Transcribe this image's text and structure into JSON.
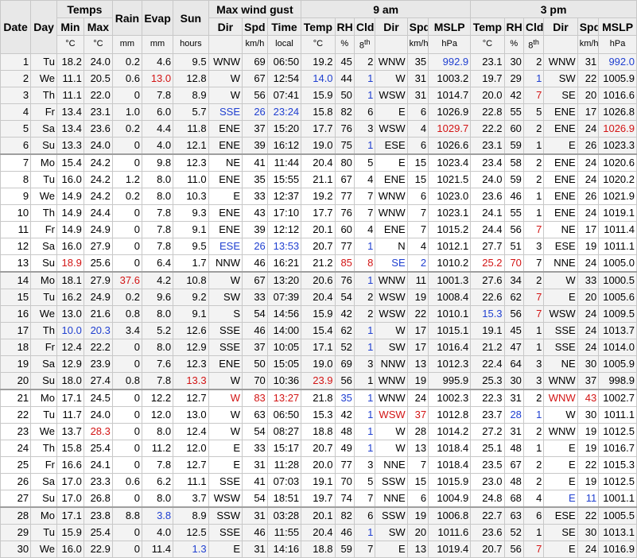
{
  "header": {
    "date": "Date",
    "day": "Day",
    "temps": "Temps",
    "rain": "Rain",
    "evap": "Evap",
    "sun": "Sun",
    "max_wind_gust": "Max wind gust",
    "am": "9 am",
    "pm": "3 pm",
    "min": "Min",
    "max": "Max",
    "dir": "Dir",
    "spd": "Spd",
    "time": "Time",
    "temp": "Temp",
    "rh": "RH",
    "cld": "Cld",
    "mslp": "MSLP",
    "unit_c": "°C",
    "unit_mm": "mm",
    "unit_hours": "hours",
    "unit_kmh": "km/h",
    "unit_local": "local",
    "unit_pct": "%",
    "unit_8": "8",
    "unit_th": "th",
    "unit_hpa": "hPa"
  },
  "colors": {
    "red": "#d21414",
    "blue": "#1f3fd0"
  },
  "rows": [
    [
      "1",
      "Tu",
      "18.2",
      "24.0",
      "0.2",
      "4.6",
      "9.5",
      "WNW",
      "69",
      "06:50",
      "19.2",
      "45",
      "2",
      "WNW",
      "35",
      "992.9",
      "23.1",
      "30",
      "2",
      "WNW",
      "31",
      "992.0"
    ],
    [
      "2",
      "We",
      "11.1",
      "20.5",
      "0.6",
      "13.0",
      "12.8",
      "W",
      "67",
      "12:54",
      "14.0",
      "44",
      "1",
      "W",
      "31",
      "1003.2",
      "19.7",
      "29",
      "1",
      "SW",
      "22",
      "1005.9"
    ],
    [
      "3",
      "Th",
      "11.1",
      "22.0",
      "0",
      "7.8",
      "8.9",
      "W",
      "56",
      "07:41",
      "15.9",
      "50",
      "1",
      "WSW",
      "31",
      "1014.7",
      "20.0",
      "42",
      "7",
      "SE",
      "20",
      "1016.6"
    ],
    [
      "4",
      "Fr",
      "13.4",
      "23.1",
      "1.0",
      "6.0",
      "5.7",
      "SSE",
      "26",
      "23:24",
      "15.8",
      "82",
      "6",
      "E",
      "6",
      "1026.9",
      "22.8",
      "55",
      "5",
      "ENE",
      "17",
      "1026.8"
    ],
    [
      "5",
      "Sa",
      "13.4",
      "23.6",
      "0.2",
      "4.4",
      "11.8",
      "ENE",
      "37",
      "15:20",
      "17.7",
      "76",
      "3",
      "WSW",
      "4",
      "1029.7",
      "22.2",
      "60",
      "2",
      "ENE",
      "24",
      "1026.9"
    ],
    [
      "6",
      "Su",
      "13.3",
      "24.0",
      "0",
      "4.0",
      "12.1",
      "ENE",
      "39",
      "16:12",
      "19.0",
      "75",
      "1",
      "ESE",
      "6",
      "1026.6",
      "23.1",
      "59",
      "1",
      "E",
      "26",
      "1023.3"
    ],
    [
      "7",
      "Mo",
      "15.4",
      "24.2",
      "0",
      "9.8",
      "12.3",
      "NE",
      "41",
      "11:44",
      "20.4",
      "80",
      "5",
      "E",
      "15",
      "1023.4",
      "23.4",
      "58",
      "2",
      "ENE",
      "24",
      "1020.6"
    ],
    [
      "8",
      "Tu",
      "16.0",
      "24.2",
      "1.2",
      "8.0",
      "11.0",
      "ENE",
      "35",
      "15:55",
      "21.1",
      "67",
      "4",
      "ENE",
      "15",
      "1021.5",
      "24.0",
      "59",
      "2",
      "ENE",
      "24",
      "1020.2"
    ],
    [
      "9",
      "We",
      "14.9",
      "24.2",
      "0.2",
      "8.0",
      "10.3",
      "E",
      "33",
      "12:37",
      "19.2",
      "77",
      "7",
      "WNW",
      "6",
      "1023.0",
      "23.6",
      "46",
      "1",
      "ENE",
      "26",
      "1021.9"
    ],
    [
      "10",
      "Th",
      "14.9",
      "24.4",
      "0",
      "7.8",
      "9.3",
      "ENE",
      "43",
      "17:10",
      "17.7",
      "76",
      "7",
      "WNW",
      "7",
      "1023.1",
      "24.1",
      "55",
      "1",
      "ENE",
      "24",
      "1019.1"
    ],
    [
      "11",
      "Fr",
      "14.9",
      "24.9",
      "0",
      "7.8",
      "9.1",
      "ENE",
      "39",
      "12:12",
      "20.1",
      "60",
      "4",
      "ENE",
      "7",
      "1015.2",
      "24.4",
      "56",
      "7",
      "NE",
      "17",
      "1011.4"
    ],
    [
      "12",
      "Sa",
      "16.0",
      "27.9",
      "0",
      "7.8",
      "9.5",
      "ESE",
      "26",
      "13:53",
      "20.7",
      "77",
      "1",
      "N",
      "4",
      "1012.1",
      "27.7",
      "51",
      "3",
      "ESE",
      "19",
      "1011.1"
    ],
    [
      "13",
      "Su",
      "18.9",
      "25.6",
      "0",
      "6.4",
      "1.7",
      "NNW",
      "46",
      "16:21",
      "21.2",
      "85",
      "8",
      "SE",
      "2",
      "1010.2",
      "25.2",
      "70",
      "7",
      "NNE",
      "24",
      "1005.0"
    ],
    [
      "14",
      "Mo",
      "18.1",
      "27.9",
      "37.6",
      "4.2",
      "10.8",
      "W",
      "67",
      "13:20",
      "20.6",
      "76",
      "1",
      "WNW",
      "11",
      "1001.3",
      "27.6",
      "34",
      "2",
      "W",
      "33",
      "1000.5"
    ],
    [
      "15",
      "Tu",
      "16.2",
      "24.9",
      "0.2",
      "9.6",
      "9.2",
      "SW",
      "33",
      "07:39",
      "20.4",
      "54",
      "2",
      "WSW",
      "19",
      "1008.4",
      "22.6",
      "62",
      "7",
      "E",
      "20",
      "1005.6"
    ],
    [
      "16",
      "We",
      "13.0",
      "21.6",
      "0.8",
      "8.0",
      "9.1",
      "S",
      "54",
      "14:56",
      "15.9",
      "42",
      "2",
      "WSW",
      "22",
      "1010.1",
      "15.3",
      "56",
      "7",
      "WSW",
      "24",
      "1009.5"
    ],
    [
      "17",
      "Th",
      "10.0",
      "20.3",
      "3.4",
      "5.2",
      "12.6",
      "SSE",
      "46",
      "14:00",
      "15.4",
      "62",
      "1",
      "W",
      "17",
      "1015.1",
      "19.1",
      "45",
      "1",
      "SSE",
      "24",
      "1013.7"
    ],
    [
      "18",
      "Fr",
      "12.4",
      "22.2",
      "0",
      "8.0",
      "12.9",
      "SSE",
      "37",
      "10:05",
      "17.1",
      "52",
      "1",
      "SW",
      "17",
      "1016.4",
      "21.2",
      "47",
      "1",
      "SSE",
      "24",
      "1014.0"
    ],
    [
      "19",
      "Sa",
      "12.9",
      "23.9",
      "0",
      "7.6",
      "12.3",
      "ENE",
      "50",
      "15:05",
      "19.0",
      "69",
      "3",
      "NNW",
      "13",
      "1012.3",
      "22.4",
      "64",
      "3",
      "NE",
      "30",
      "1005.9"
    ],
    [
      "20",
      "Su",
      "18.0",
      "27.4",
      "0.8",
      "7.8",
      "13.3",
      "W",
      "70",
      "10:36",
      "23.9",
      "56",
      "1",
      "WNW",
      "19",
      "995.9",
      "25.3",
      "30",
      "3",
      "WNW",
      "37",
      "998.9"
    ],
    [
      "21",
      "Mo",
      "17.1",
      "24.5",
      "0",
      "12.2",
      "12.7",
      "W",
      "83",
      "13:27",
      "21.8",
      "35",
      "1",
      "WNW",
      "24",
      "1002.3",
      "22.3",
      "31",
      "2",
      "WNW",
      "43",
      "1002.7"
    ],
    [
      "22",
      "Tu",
      "11.7",
      "24.0",
      "0",
      "12.0",
      "13.0",
      "W",
      "63",
      "06:50",
      "15.3",
      "42",
      "1",
      "WSW",
      "37",
      "1012.8",
      "23.7",
      "28",
      "1",
      "W",
      "30",
      "1011.1"
    ],
    [
      "23",
      "We",
      "13.7",
      "28.3",
      "0",
      "8.0",
      "12.4",
      "W",
      "54",
      "08:27",
      "18.8",
      "48",
      "1",
      "W",
      "28",
      "1014.2",
      "27.2",
      "31",
      "2",
      "WNW",
      "19",
      "1012.5"
    ],
    [
      "24",
      "Th",
      "15.8",
      "25.4",
      "0",
      "11.2",
      "12.0",
      "E",
      "33",
      "15:17",
      "20.7",
      "49",
      "1",
      "W",
      "13",
      "1018.4",
      "25.1",
      "48",
      "1",
      "E",
      "19",
      "1016.7"
    ],
    [
      "25",
      "Fr",
      "16.6",
      "24.1",
      "0",
      "7.8",
      "12.7",
      "E",
      "31",
      "11:28",
      "20.0",
      "77",
      "3",
      "NNE",
      "7",
      "1018.4",
      "23.5",
      "67",
      "2",
      "E",
      "22",
      "1015.3"
    ],
    [
      "26",
      "Sa",
      "17.0",
      "23.3",
      "0.6",
      "6.2",
      "11.1",
      "SSE",
      "41",
      "07:03",
      "19.1",
      "70",
      "5",
      "SSW",
      "15",
      "1015.9",
      "23.0",
      "48",
      "2",
      "E",
      "19",
      "1012.5"
    ],
    [
      "27",
      "Su",
      "17.0",
      "26.8",
      "0",
      "8.0",
      "3.7",
      "WSW",
      "54",
      "18:51",
      "19.7",
      "74",
      "7",
      "NNE",
      "6",
      "1004.9",
      "24.8",
      "68",
      "4",
      "E",
      "11",
      "1001.1"
    ],
    [
      "28",
      "Mo",
      "17.1",
      "23.8",
      "8.8",
      "3.8",
      "8.9",
      "SSW",
      "31",
      "03:28",
      "20.1",
      "82",
      "6",
      "SSW",
      "19",
      "1006.8",
      "22.7",
      "63",
      "6",
      "ESE",
      "22",
      "1005.5"
    ],
    [
      "29",
      "Tu",
      "15.9",
      "25.4",
      "0",
      "4.0",
      "12.5",
      "SSE",
      "46",
      "11:55",
      "20.4",
      "46",
      "1",
      "SW",
      "20",
      "1011.6",
      "23.6",
      "52",
      "1",
      "SE",
      "30",
      "1013.1"
    ],
    [
      "30",
      "We",
      "16.0",
      "22.9",
      "0",
      "11.4",
      "1.3",
      "E",
      "31",
      "14:16",
      "18.8",
      "59",
      "7",
      "E",
      "13",
      "1019.4",
      "20.7",
      "56",
      "7",
      "E",
      "24",
      "1016.9"
    ]
  ],
  "highlights": {
    "red": [
      [
        1,
        5
      ],
      [
        4,
        15
      ],
      [
        4,
        21
      ],
      [
        12,
        16
      ],
      [
        12,
        2
      ],
      [
        12,
        11
      ],
      [
        12,
        12
      ],
      [
        12,
        17
      ],
      [
        13,
        4
      ],
      [
        19,
        6
      ],
      [
        19,
        10
      ],
      [
        20,
        7
      ],
      [
        20,
        8
      ],
      [
        20,
        9
      ],
      [
        20,
        19
      ],
      [
        20,
        20
      ],
      [
        21,
        13
      ],
      [
        21,
        14
      ],
      [
        22,
        3
      ],
      [
        2,
        18
      ],
      [
        10,
        18
      ],
      [
        14,
        18
      ],
      [
        15,
        18
      ],
      [
        29,
        18
      ]
    ],
    "blue": [
      [
        0,
        15
      ],
      [
        0,
        21
      ],
      [
        1,
        10
      ],
      [
        1,
        12
      ],
      [
        1,
        18
      ],
      [
        2,
        12
      ],
      [
        3,
        7
      ],
      [
        3,
        8
      ],
      [
        3,
        9
      ],
      [
        5,
        12
      ],
      [
        11,
        7
      ],
      [
        11,
        8
      ],
      [
        11,
        9
      ],
      [
        11,
        12
      ],
      [
        12,
        13
      ],
      [
        12,
        14
      ],
      [
        13,
        12
      ],
      [
        15,
        16
      ],
      [
        16,
        2
      ],
      [
        16,
        3
      ],
      [
        16,
        12
      ],
      [
        17,
        12
      ],
      [
        20,
        11
      ],
      [
        20,
        12
      ],
      [
        21,
        12
      ],
      [
        21,
        17
      ],
      [
        21,
        18
      ],
      [
        22,
        12
      ],
      [
        23,
        12
      ],
      [
        26,
        19
      ],
      [
        26,
        20
      ],
      [
        27,
        5
      ],
      [
        28,
        12
      ],
      [
        29,
        6
      ]
    ]
  }
}
